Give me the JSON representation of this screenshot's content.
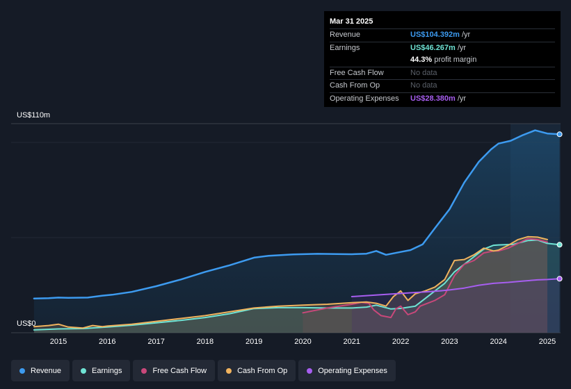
{
  "tooltip": {
    "date": "Mar 31 2025",
    "rows": [
      {
        "label": "Revenue",
        "value": "US$104.392m",
        "unit": "/yr",
        "color": "#3d9bf0"
      },
      {
        "label": "Earnings",
        "value": "US$46.267m",
        "unit": "/yr",
        "color": "#6fe3d4"
      },
      {
        "label": "",
        "value": "44.3%",
        "unit": "profit margin",
        "color": "#ffffff"
      },
      {
        "label": "Free Cash Flow",
        "value": "No data",
        "unit": "",
        "color": "#5b6069"
      },
      {
        "label": "Cash From Op",
        "value": "No data",
        "unit": "",
        "color": "#5b6069"
      },
      {
        "label": "Operating Expenses",
        "value": "US$28.380m",
        "unit": "/yr",
        "color": "#a75ef0"
      }
    ]
  },
  "y_axis": {
    "top_label": "US$110m",
    "bottom_label": "US$0"
  },
  "legend": [
    {
      "label": "Revenue",
      "color": "#3d9bf0"
    },
    {
      "label": "Earnings",
      "color": "#6fe3d4"
    },
    {
      "label": "Free Cash Flow",
      "color": "#c9487a"
    },
    {
      "label": "Cash From Op",
      "color": "#f0b35e"
    },
    {
      "label": "Operating Expenses",
      "color": "#a75ef0"
    }
  ],
  "chart_data": {
    "type": "area",
    "x_ticks": [
      "2015",
      "2016",
      "2017",
      "2018",
      "2019",
      "2020",
      "2021",
      "2022",
      "2023",
      "2024",
      "2025"
    ],
    "ylim": [
      0,
      110
    ],
    "y_unit": "US$m",
    "series": [
      {
        "name": "Revenue",
        "color": "#3d9bf0",
        "points": [
          [
            2014.5,
            18
          ],
          [
            2014.8,
            18.2
          ],
          [
            2015.0,
            18.5
          ],
          [
            2015.2,
            18.4
          ],
          [
            2015.6,
            18.5
          ],
          [
            2015.9,
            19.5
          ],
          [
            2016.1,
            20
          ],
          [
            2016.5,
            21.5
          ],
          [
            2017.0,
            24.5
          ],
          [
            2017.5,
            28
          ],
          [
            2018.0,
            32
          ],
          [
            2018.5,
            35.5
          ],
          [
            2019.0,
            39.5
          ],
          [
            2019.3,
            40.5
          ],
          [
            2019.8,
            41.2
          ],
          [
            2020.3,
            41.5
          ],
          [
            2020.7,
            41.4
          ],
          [
            2021.0,
            41.3
          ],
          [
            2021.3,
            41.6
          ],
          [
            2021.5,
            43
          ],
          [
            2021.7,
            41
          ],
          [
            2022.0,
            42.5
          ],
          [
            2022.2,
            43.5
          ],
          [
            2022.45,
            46.5
          ],
          [
            2022.7,
            55
          ],
          [
            2023.0,
            65
          ],
          [
            2023.3,
            79
          ],
          [
            2023.6,
            90
          ],
          [
            2023.85,
            96.5
          ],
          [
            2024.0,
            99.5
          ],
          [
            2024.25,
            101
          ],
          [
            2024.5,
            104
          ],
          [
            2024.75,
            106.5
          ],
          [
            2025.0,
            104.8
          ],
          [
            2025.25,
            104.4
          ]
        ]
      },
      {
        "name": "Earnings",
        "color": "#6fe3d4",
        "points": [
          [
            2014.5,
            1.5
          ],
          [
            2015.0,
            2
          ],
          [
            2015.5,
            2.2
          ],
          [
            2016.0,
            3
          ],
          [
            2016.5,
            4
          ],
          [
            2017.0,
            5.2
          ],
          [
            2017.5,
            6.5
          ],
          [
            2018.0,
            8
          ],
          [
            2018.5,
            10
          ],
          [
            2019.0,
            12.7
          ],
          [
            2019.5,
            13.2
          ],
          [
            2020.0,
            13.2
          ],
          [
            2020.5,
            13
          ],
          [
            2021.0,
            13
          ],
          [
            2021.3,
            13.5
          ],
          [
            2021.5,
            14.5
          ],
          [
            2021.8,
            12.5
          ],
          [
            2022.0,
            12.8
          ],
          [
            2022.3,
            14
          ],
          [
            2022.6,
            20
          ],
          [
            2022.9,
            26
          ],
          [
            2023.1,
            32
          ],
          [
            2023.4,
            38
          ],
          [
            2023.7,
            44
          ],
          [
            2023.9,
            46
          ],
          [
            2024.0,
            46.2
          ],
          [
            2024.3,
            46.5
          ],
          [
            2024.6,
            48.5
          ],
          [
            2024.8,
            48.8
          ],
          [
            2025.0,
            47
          ],
          [
            2025.25,
            46.3
          ]
        ]
      },
      {
        "name": "Free Cash Flow",
        "color": "#c9487a",
        "points": [
          [
            2020.0,
            10.5
          ],
          [
            2020.5,
            13
          ],
          [
            2021.0,
            15
          ],
          [
            2021.2,
            16
          ],
          [
            2021.35,
            15.5
          ],
          [
            2021.45,
            12
          ],
          [
            2021.6,
            9
          ],
          [
            2021.8,
            8
          ],
          [
            2021.9,
            12.5
          ],
          [
            2022.0,
            14
          ],
          [
            2022.15,
            9.5
          ],
          [
            2022.3,
            11
          ],
          [
            2022.4,
            14
          ],
          [
            2022.55,
            15.5
          ],
          [
            2022.7,
            17
          ],
          [
            2022.9,
            20
          ],
          [
            2023.1,
            30
          ],
          [
            2023.3,
            36
          ],
          [
            2023.5,
            38
          ],
          [
            2023.7,
            42
          ],
          [
            2023.9,
            43
          ],
          [
            2024.0,
            43
          ],
          [
            2024.2,
            44.5
          ],
          [
            2024.4,
            47
          ],
          [
            2024.6,
            49.5
          ],
          [
            2024.8,
            49
          ],
          [
            2025.0,
            47.7
          ]
        ]
      },
      {
        "name": "Cash From Op",
        "color": "#f0b35e",
        "points": [
          [
            2014.5,
            3.2
          ],
          [
            2014.8,
            3.8
          ],
          [
            2015.0,
            4.5
          ],
          [
            2015.2,
            3
          ],
          [
            2015.5,
            2.5
          ],
          [
            2015.7,
            3.8
          ],
          [
            2015.9,
            3.2
          ],
          [
            2016.0,
            3.5
          ],
          [
            2016.5,
            4.5
          ],
          [
            2017.0,
            6
          ],
          [
            2017.5,
            7.5
          ],
          [
            2018.0,
            9
          ],
          [
            2018.5,
            11
          ],
          [
            2019.0,
            13
          ],
          [
            2019.5,
            14
          ],
          [
            2020.0,
            14.5
          ],
          [
            2020.5,
            15
          ],
          [
            2021.0,
            15.8
          ],
          [
            2021.3,
            16.2
          ],
          [
            2021.5,
            15.5
          ],
          [
            2021.7,
            14
          ],
          [
            2021.85,
            19
          ],
          [
            2022.0,
            22
          ],
          [
            2022.15,
            17
          ],
          [
            2022.3,
            20.5
          ],
          [
            2022.5,
            22
          ],
          [
            2022.7,
            24
          ],
          [
            2022.9,
            28
          ],
          [
            2023.1,
            38
          ],
          [
            2023.3,
            38.5
          ],
          [
            2023.5,
            41
          ],
          [
            2023.7,
            44.5
          ],
          [
            2023.9,
            43
          ],
          [
            2024.0,
            43.5
          ],
          [
            2024.2,
            46
          ],
          [
            2024.4,
            49
          ],
          [
            2024.6,
            50.5
          ],
          [
            2024.8,
            50.3
          ],
          [
            2025.0,
            49
          ]
        ]
      },
      {
        "name": "Operating Expenses",
        "color": "#a75ef0",
        "points": [
          [
            2021.0,
            19
          ],
          [
            2021.3,
            19.5
          ],
          [
            2021.6,
            20
          ],
          [
            2021.9,
            20.5
          ],
          [
            2022.2,
            21
          ],
          [
            2022.5,
            21.5
          ],
          [
            2022.8,
            22
          ],
          [
            2023.0,
            22.5
          ],
          [
            2023.3,
            23.5
          ],
          [
            2023.6,
            25
          ],
          [
            2023.9,
            26
          ],
          [
            2024.2,
            26.5
          ],
          [
            2024.5,
            27.2
          ],
          [
            2024.8,
            27.8
          ],
          [
            2025.0,
            28
          ],
          [
            2025.25,
            28.4
          ]
        ]
      }
    ]
  }
}
